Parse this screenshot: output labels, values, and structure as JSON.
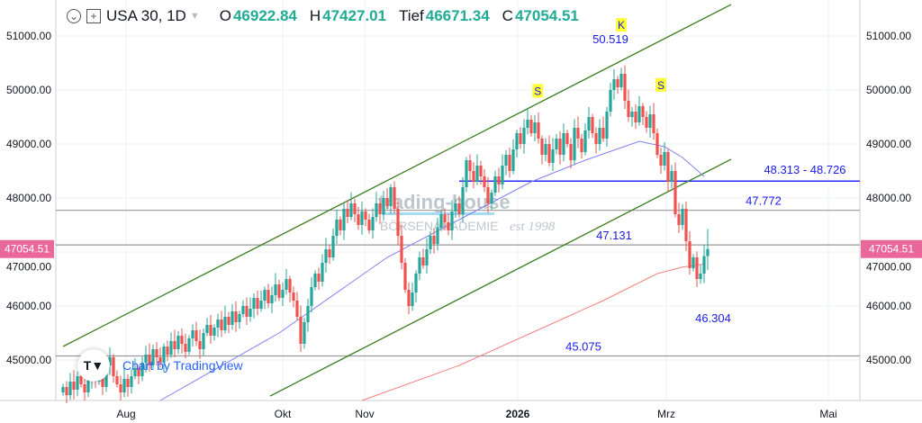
{
  "legend": {
    "symbol": "USA 30, 1D",
    "open_label": "O",
    "open": "46922.84",
    "high_label": "H",
    "high": "47427.01",
    "low_label": "Tief",
    "low": "46671.34",
    "close_label": "C",
    "close": "47054.51"
  },
  "attribution": {
    "logo": "TV",
    "text": "Chart by TradingView"
  },
  "watermark": {
    "line1": "trading-house",
    "line2": "BÖRSENAKADEMIE",
    "line3": "est 1998"
  },
  "colors": {
    "up": "#26a69a",
    "down": "#ef5350",
    "channel": "#3a7d1e",
    "level_blue": "#2a2af0",
    "level_gray": "#999999",
    "ma_fast": "#8080f0",
    "ma_slow": "#f08080",
    "price_tag": "#e9679a",
    "annot_text": "#1a1ae6",
    "marker_bg": "#ffff33"
  },
  "chart_data": {
    "type": "candlestick",
    "interval": "1D",
    "ylim": [
      44250,
      51650
    ],
    "y_ticks": [
      "51000.00",
      "50000.00",
      "49000.00",
      "48000.00",
      "47000.00",
      "46000.00",
      "45000.00"
    ],
    "x_ticks": [
      {
        "label": "Aug",
        "index": 17.5
      },
      {
        "label": "Okt",
        "index": 61
      },
      {
        "label": "Nov",
        "index": 83.75
      },
      {
        "label": "2026",
        "index": 126.25,
        "bold": true
      },
      {
        "label": "Mrz",
        "index": 167.5
      },
      {
        "label": "Mai",
        "index": 212.5
      }
    ],
    "closes": [
      44500,
      44350,
      44600,
      44450,
      44700,
      44550,
      44400,
      44650,
      44800,
      44600,
      44750,
      44500,
      44900,
      45050,
      44700,
      44550,
      44400,
      44650,
      44500,
      44700,
      44850,
      44700,
      44950,
      45100,
      44900,
      45200,
      45050,
      44950,
      45250,
      45100,
      45350,
      45200,
      45450,
      45300,
      45150,
      45400,
      45550,
      45350,
      45200,
      45500,
      45650,
      45450,
      45600,
      45750,
      45550,
      45800,
      45650,
      45900,
      45700,
      45850,
      46000,
      45800,
      45950,
      46150,
      45950,
      46100,
      46300,
      46050,
      46200,
      46400,
      46150,
      46300,
      46500,
      46250,
      46100,
      45800,
      45300,
      45700,
      46000,
      46350,
      46600,
      46450,
      46800,
      47050,
      46900,
      47300,
      47600,
      47400,
      47800,
      47650,
      47900,
      47700,
      47500,
      47750,
      47600,
      47400,
      47650,
      47900,
      47700,
      48000,
      47850,
      48200,
      47800,
      47300,
      46800,
      46300,
      46000,
      46250,
      46600,
      46900,
      46750,
      47050,
      47300,
      47150,
      47450,
      47700,
      47550,
      47400,
      47750,
      47900,
      47700,
      48200,
      48700,
      48500,
      48300,
      48600,
      48400,
      48200,
      47900,
      48100,
      48400,
      48250,
      48600,
      48800,
      48500,
      48900,
      49200,
      49000,
      49300,
      49450,
      49200,
      49400,
      49100,
      48800,
      49000,
      48650,
      48900,
      49100,
      48800,
      49200,
      49000,
      48700,
      49300,
      49100,
      48850,
      49250,
      49500,
      49200,
      49000,
      49300,
      49100,
      49600,
      50000,
      50200,
      50050,
      50300,
      49800,
      49500,
      49600,
      49400,
      49700,
      49500,
      49300,
      49550,
      49200,
      48800,
      48600,
      48850,
      48300,
      48500,
      47700,
      47500,
      47800,
      47200,
      46700,
      46900,
      46500,
      46600,
      46922.84,
      47054.51
    ],
    "last_candle": {
      "open": 46922.84,
      "high": 47427.01,
      "low": 46671.34,
      "close": 47054.51
    },
    "ma_fast": [
      [
        27,
        44250
      ],
      [
        60,
        45500
      ],
      [
        90,
        46900
      ],
      [
        110,
        47600
      ],
      [
        130,
        48300
      ],
      [
        145,
        48700
      ],
      [
        160,
        49050
      ],
      [
        167,
        48950
      ],
      [
        172,
        48750
      ],
      [
        178,
        48400
      ]
    ],
    "ma_slow": [
      [
        83,
        44250
      ],
      [
        110,
        44900
      ],
      [
        130,
        45500
      ],
      [
        150,
        46100
      ],
      [
        165,
        46600
      ],
      [
        172,
        46720
      ],
      [
        178,
        46780
      ]
    ],
    "channel_upper": [
      [
        0,
        45250
      ],
      [
        185.5,
        51583
      ]
    ],
    "channel_lower": [
      [
        57.5,
        44333
      ],
      [
        185.5,
        48717
      ]
    ],
    "levels": [
      {
        "value": 48313,
        "kind": "blue",
        "label": "48.313 - 48.726"
      },
      {
        "value": 47772,
        "kind": "gray",
        "label": "47.772"
      },
      {
        "value": 47131,
        "kind": "gray",
        "label": "47.131"
      },
      {
        "value": 45075,
        "kind": "gray",
        "label": "45.075"
      }
    ],
    "annotations": [
      {
        "text": "50.519",
        "kind": "label"
      },
      {
        "text": "46.304",
        "kind": "label"
      },
      {
        "text": "K",
        "kind": "marker"
      },
      {
        "text": "S",
        "kind": "marker"
      },
      {
        "text": "S",
        "kind": "marker"
      }
    ],
    "current_price": "47054.51"
  }
}
